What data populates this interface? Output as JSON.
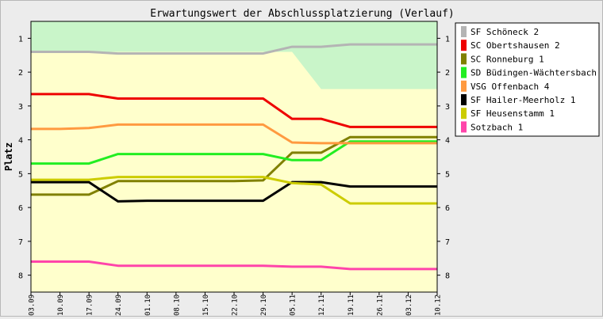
{
  "chart_data": {
    "type": "line",
    "title": "Erwartungswert der Abschlussplatzierung (Verlauf)",
    "ylabel": "Platz",
    "xlabel": "",
    "x": [
      "03.09",
      "10.09",
      "17.09",
      "24.09",
      "01.10",
      "08.10",
      "15.10",
      "22.10",
      "29.10",
      "05.11",
      "12.11",
      "19.11",
      "26.11",
      "03.12",
      "10.12"
    ],
    "yticks": [
      1,
      2,
      3,
      4,
      5,
      6,
      7,
      8
    ],
    "ylim": [
      0.5,
      8.5
    ],
    "y_inverted": true,
    "grid": false,
    "legend_position": "right",
    "bands": [
      {
        "kind": "promotion",
        "color": "#c9f5c9"
      },
      {
        "kind": "main",
        "color": "#ffffcc"
      }
    ],
    "promotion_band_lower_edge": [
      1.4,
      1.4,
      1.4,
      1.4,
      1.4,
      1.4,
      1.4,
      1.4,
      1.4,
      1.4,
      2.5,
      2.5,
      2.5,
      2.5,
      2.5
    ],
    "series": [
      {
        "name": "SF Schöneck 2",
        "color": "#b4b4b4",
        "values": [
          1.4,
          1.4,
          1.4,
          1.45,
          1.45,
          1.45,
          1.45,
          1.45,
          1.45,
          1.25,
          1.25,
          1.18,
          1.18,
          1.18,
          1.18
        ]
      },
      {
        "name": "SC Obertshausen 2",
        "color": "#ee0000",
        "values": [
          2.65,
          2.65,
          2.65,
          2.78,
          2.78,
          2.78,
          2.78,
          2.78,
          2.78,
          3.38,
          3.38,
          3.62,
          3.62,
          3.62,
          3.62
        ]
      },
      {
        "name": "SC Ronneburg 1",
        "color": "#808000",
        "values": [
          5.62,
          5.62,
          5.62,
          5.22,
          5.22,
          5.22,
          5.22,
          5.22,
          5.2,
          4.38,
          4.38,
          3.92,
          3.92,
          3.92,
          3.92
        ]
      },
      {
        "name": "SD Büdingen-Wächtersbach 3",
        "color": "#22ee22",
        "values": [
          4.7,
          4.7,
          4.7,
          4.42,
          4.42,
          4.42,
          4.42,
          4.42,
          4.42,
          4.6,
          4.6,
          4.05,
          4.05,
          4.05,
          4.05
        ]
      },
      {
        "name": "VSG Offenbach 4",
        "color": "#ff9a40",
        "values": [
          3.68,
          3.68,
          3.65,
          3.55,
          3.55,
          3.55,
          3.55,
          3.55,
          3.55,
          4.08,
          4.1,
          4.1,
          4.1,
          4.1,
          4.1
        ]
      },
      {
        "name": "SF Hailer-Meerholz 1",
        "color": "#000000",
        "values": [
          5.25,
          5.25,
          5.25,
          5.82,
          5.8,
          5.8,
          5.8,
          5.8,
          5.8,
          5.25,
          5.25,
          5.38,
          5.38,
          5.38,
          5.38
        ]
      },
      {
        "name": "SF Heusenstamm 1",
        "color": "#cccc00",
        "values": [
          5.18,
          5.18,
          5.18,
          5.1,
          5.1,
          5.1,
          5.1,
          5.1,
          5.1,
          5.28,
          5.32,
          5.88,
          5.88,
          5.88,
          5.88
        ]
      },
      {
        "name": "Sotzbach 1",
        "color": "#ff44aa",
        "values": [
          7.6,
          7.6,
          7.6,
          7.72,
          7.72,
          7.72,
          7.72,
          7.72,
          7.72,
          7.75,
          7.75,
          7.82,
          7.82,
          7.82,
          7.82
        ]
      }
    ]
  }
}
